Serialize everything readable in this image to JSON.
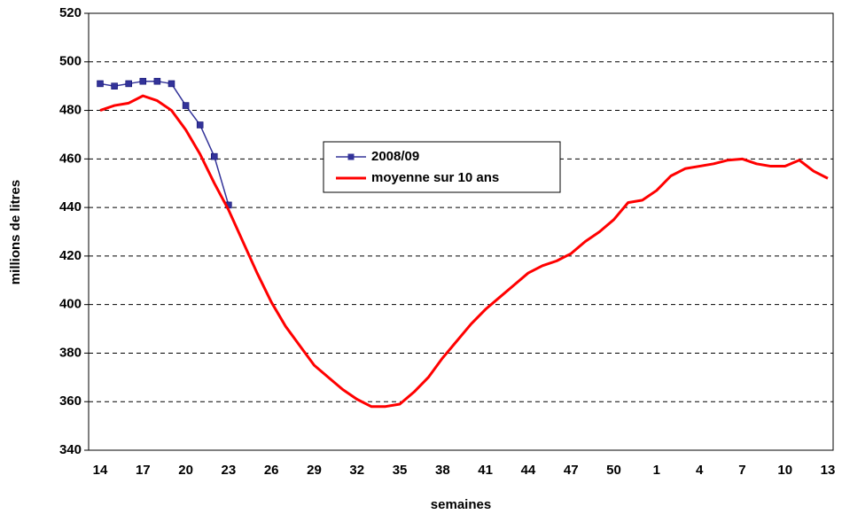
{
  "chart_data": {
    "type": "line",
    "xlabel": "semaines",
    "ylabel": "millions de litres",
    "categories": [
      14,
      null,
      null,
      17,
      null,
      null,
      20,
      null,
      null,
      23,
      null,
      null,
      26,
      null,
      null,
      29,
      null,
      null,
      32,
      null,
      null,
      35,
      null,
      null,
      38,
      null,
      null,
      41,
      null,
      null,
      44,
      null,
      null,
      47,
      null,
      null,
      50,
      null,
      null,
      1,
      null,
      null,
      4,
      null,
      null,
      7,
      null,
      null,
      10,
      null,
      null,
      13
    ],
    "series": [
      {
        "name": "2008/09",
        "color": "#333399",
        "marker": "square",
        "values": [
          491,
          490,
          491,
          492,
          492,
          491,
          482,
          474,
          461,
          441,
          null,
          null,
          null,
          null,
          null,
          null,
          null,
          null,
          null,
          null,
          null,
          null,
          null,
          null,
          null,
          null,
          null,
          null,
          null,
          null,
          null,
          null,
          null,
          null,
          null,
          null,
          null,
          null,
          null,
          null,
          null,
          null,
          null,
          null,
          null,
          null,
          null,
          null,
          null,
          null,
          null,
          null
        ]
      },
      {
        "name": "moyenne sur 10 ans",
        "color": "#ff0000",
        "values": [
          480,
          482,
          483,
          486,
          484,
          480,
          472,
          462,
          450,
          439,
          426,
          413,
          401,
          391,
          383,
          375,
          370,
          365,
          361,
          358,
          358,
          359,
          364,
          370,
          378,
          385,
          392,
          398,
          403,
          408,
          413,
          416,
          418,
          421,
          426,
          430,
          435,
          442,
          443,
          447,
          453,
          456,
          457,
          458,
          459.5,
          460,
          458,
          457,
          457,
          459.5,
          455,
          452
        ]
      }
    ],
    "ylim": [
      340,
      520
    ],
    "yticks": [
      340,
      360,
      380,
      400,
      420,
      440,
      460,
      480,
      500,
      520
    ],
    "grid": true,
    "legend": "center"
  }
}
